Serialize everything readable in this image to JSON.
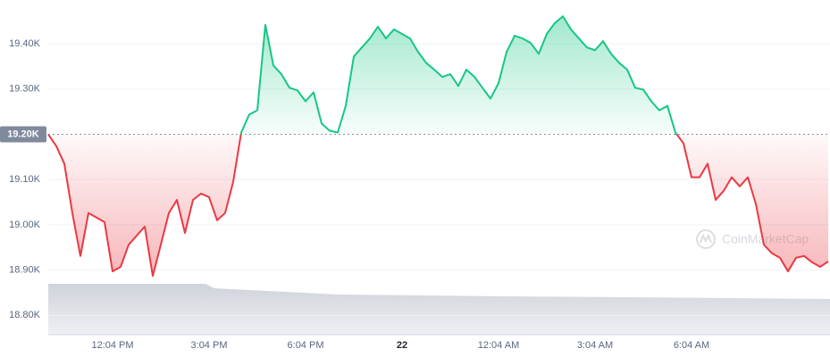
{
  "chart_data": {
    "type": "line",
    "categories": [
      null,
      null,
      null,
      null,
      null,
      null,
      null,
      null,
      "12:04 PM",
      null,
      null,
      null,
      null,
      null,
      null,
      null,
      null,
      null,
      null,
      null,
      "3:04 PM",
      null,
      null,
      null,
      null,
      null,
      null,
      null,
      null,
      null,
      null,
      null,
      "6:04 PM",
      null,
      null,
      null,
      null,
      null,
      null,
      null,
      null,
      null,
      null,
      null,
      "22",
      null,
      null,
      null,
      null,
      null,
      null,
      null,
      null,
      null,
      null,
      null,
      "12:04 AM",
      null,
      null,
      null,
      null,
      null,
      null,
      null,
      null,
      null,
      null,
      null,
      "3:04 AM",
      null,
      null,
      null,
      null,
      null,
      null,
      null,
      null,
      null,
      null,
      null,
      "6:04 AM",
      null,
      null,
      null,
      null,
      null,
      null,
      null,
      null,
      null,
      null,
      null,
      null,
      null,
      null,
      null,
      null,
      null
    ],
    "values": [
      19200,
      19174,
      19135,
      19026,
      18931,
      19026,
      19016,
      19006,
      18897,
      18907,
      18956,
      18976,
      18996,
      18887,
      18956,
      19026,
      19055,
      18982,
      19055,
      19069,
      19061,
      19010,
      19026,
      19095,
      19204,
      19244,
      19253,
      19442,
      19352,
      19333,
      19303,
      19297,
      19273,
      19293,
      19224,
      19208,
      19204,
      19263,
      19372,
      19392,
      19412,
      19438,
      19412,
      19432,
      19422,
      19412,
      19382,
      19358,
      19343,
      19327,
      19333,
      19307,
      19343,
      19327,
      19303,
      19279,
      19313,
      19382,
      19418,
      19412,
      19402,
      19378,
      19422,
      19446,
      19461,
      19432,
      19412,
      19392,
      19386,
      19406,
      19378,
      19358,
      19343,
      19303,
      19299,
      19273,
      19253,
      19263,
      19204,
      19180,
      19105,
      19105,
      19135,
      19055,
      19075,
      19105,
      19085,
      19105,
      19046,
      18956,
      18937,
      18927,
      18897,
      18927,
      18931,
      18917,
      18907,
      18919
    ],
    "ylim": [
      18757,
      19497
    ],
    "yticks": [
      {
        "value": 18800,
        "label": "18.80K"
      },
      {
        "value": 18900,
        "label": "18.90K"
      },
      {
        "value": 19000,
        "label": "19.00K"
      },
      {
        "value": 19100,
        "label": "19.10K"
      },
      {
        "value": 19300,
        "label": "19.30K"
      },
      {
        "value": 19400,
        "label": "19.40K"
      }
    ],
    "baseline": {
      "value": 19200,
      "label": "19.20K"
    },
    "up_color": "#16c784",
    "down_color": "#ea3943",
    "grid": true,
    "watermark": "CoinMarketCap"
  }
}
